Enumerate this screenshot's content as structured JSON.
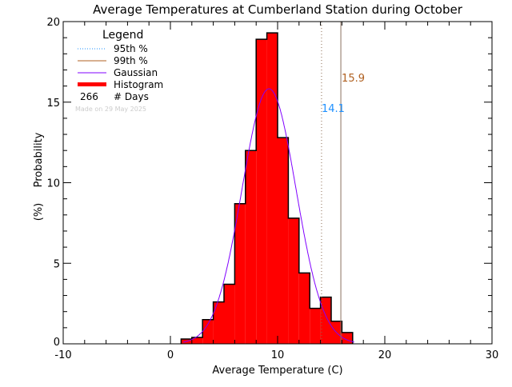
{
  "chart_data": {
    "type": "bar",
    "title": "Average Temperatures at Cumberland Station during October",
    "xlabel": "Average Temperature (C)",
    "ylabel": "Probability\n(%)",
    "xlim": [
      -10,
      30
    ],
    "ylim": [
      0,
      20
    ],
    "xticks": [
      -10,
      0,
      10,
      20,
      30
    ],
    "yticks": [
      0,
      5,
      10,
      15,
      20
    ],
    "histogram": {
      "name": "Histogram",
      "bin_edges": [
        1,
        2,
        3,
        4,
        5,
        6,
        7,
        8,
        9,
        10,
        11,
        12,
        13,
        14,
        15,
        16,
        17
      ],
      "values": [
        0.3,
        0.4,
        1.5,
        2.6,
        3.7,
        8.7,
        12.0,
        18.9,
        19.3,
        12.8,
        7.8,
        4.4,
        2.2,
        2.9,
        1.4,
        0.7
      ],
      "color": "#ff0000"
    },
    "gaussian": {
      "name": "Gaussian",
      "mean": 9.2,
      "sigma": 2.52,
      "color": "#8000ff"
    },
    "percentile_95": {
      "name": "95th %",
      "value": 14.1,
      "label": "14.1",
      "color": "#1e90ff",
      "style": "dotted"
    },
    "percentile_99": {
      "name": "99th %",
      "value": 15.9,
      "label": "15.9",
      "color": "#b06020",
      "style": "solid"
    },
    "legend": {
      "title": "Legend",
      "days_count": "266",
      "days_label": "# Days",
      "made_on": "Made on 29 May 2025",
      "placement": "top-left"
    }
  }
}
